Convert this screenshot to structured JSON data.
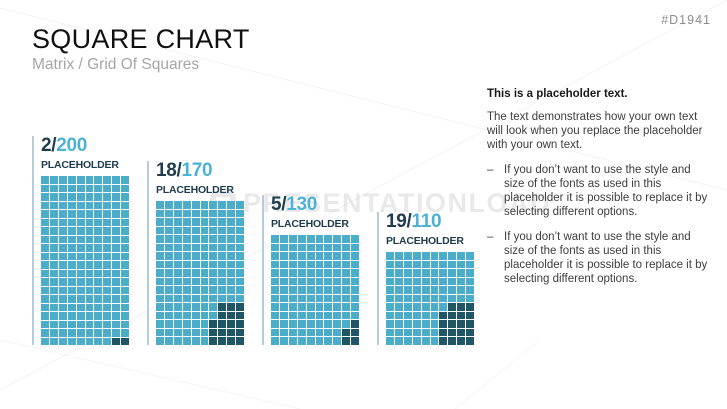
{
  "slide": {
    "title": "SQUARE CHART",
    "subtitle": "Matrix / Grid Of Squares",
    "slide_id": "#D1941",
    "watermark_text": "PRESENTATIONLOAD"
  },
  "colors": {
    "light_cell": "#4badc9",
    "dark_cell": "#205565",
    "label_dark": "#1e3c4e",
    "label_light": "#4cb3d4",
    "rule": "#b3cdd9",
    "title": "#101010",
    "subtitle": "#a6a6a6"
  },
  "chart_data": {
    "type": "waffle",
    "title": "SQUARE CHART",
    "subtitle": "Matrix / Grid Of Squares",
    "charts": [
      {
        "label": "PLACEHOLDER",
        "filled": 2,
        "total": 200,
        "display": "2/200"
      },
      {
        "label": "PLACEHOLDER",
        "filled": 18,
        "total": 170,
        "display": "18/170"
      },
      {
        "label": "PLACEHOLDER",
        "filled": 5,
        "total": 130,
        "display": "5/130"
      },
      {
        "label": "PLACEHOLDER",
        "filled": 19,
        "total": 110,
        "display": "19/110"
      }
    ]
  },
  "charts": [
    {
      "value_prefix": "2/",
      "value_total": "200",
      "label": "PLACEHOLDER",
      "rows": 20,
      "cols": 10,
      "filled": 2,
      "total": 200,
      "dark_cells": [
        [
          20,
          9
        ],
        [
          20,
          10
        ]
      ]
    },
    {
      "value_prefix": "18/",
      "value_total": "170",
      "label": "PLACEHOLDER",
      "rows": 17,
      "cols": 10,
      "filled": 18,
      "total": 170,
      "dark_cells": [
        [
          13,
          8
        ],
        [
          13,
          9
        ],
        [
          13,
          10
        ],
        [
          14,
          8
        ],
        [
          14,
          9
        ],
        [
          14,
          10
        ],
        [
          15,
          7
        ],
        [
          15,
          8
        ],
        [
          15,
          9
        ],
        [
          15,
          10
        ],
        [
          16,
          7
        ],
        [
          16,
          8
        ],
        [
          16,
          9
        ],
        [
          16,
          10
        ],
        [
          17,
          7
        ],
        [
          17,
          8
        ],
        [
          17,
          9
        ],
        [
          17,
          10
        ]
      ]
    },
    {
      "value_prefix": "5/",
      "value_total": "130",
      "label": "PLACEHOLDER",
      "rows": 13,
      "cols": 10,
      "filled": 5,
      "total": 130,
      "dark_cells": [
        [
          11,
          10
        ],
        [
          12,
          9
        ],
        [
          12,
          10
        ],
        [
          13,
          9
        ],
        [
          13,
          10
        ]
      ]
    },
    {
      "value_prefix": "19/",
      "value_total": "110",
      "label": "PLACEHOLDER",
      "rows": 11,
      "cols": 10,
      "filled": 19,
      "total": 110,
      "dark_cells": [
        [
          7,
          8
        ],
        [
          7,
          9
        ],
        [
          7,
          10
        ],
        [
          8,
          7
        ],
        [
          8,
          8
        ],
        [
          8,
          9
        ],
        [
          8,
          10
        ],
        [
          9,
          7
        ],
        [
          9,
          8
        ],
        [
          9,
          9
        ],
        [
          9,
          10
        ],
        [
          10,
          7
        ],
        [
          10,
          8
        ],
        [
          10,
          9
        ],
        [
          10,
          10
        ],
        [
          11,
          7
        ],
        [
          11,
          8
        ],
        [
          11,
          9
        ],
        [
          11,
          10
        ]
      ]
    }
  ],
  "sidebar_text": {
    "heading": "This is a placeholder text.",
    "paragraph": "The text demonstrates how your own text will look when you replace the placeholder with your own text.",
    "bullet_dash": "–",
    "bullets": [
      "If you don’t want to use the style and size of the fonts as used in this placeholder it is possible to replace it by selecting different options.",
      "If you don’t want to use the style and size of the fonts as used in this placeholder it is possible to replace it by selecting different options."
    ]
  }
}
